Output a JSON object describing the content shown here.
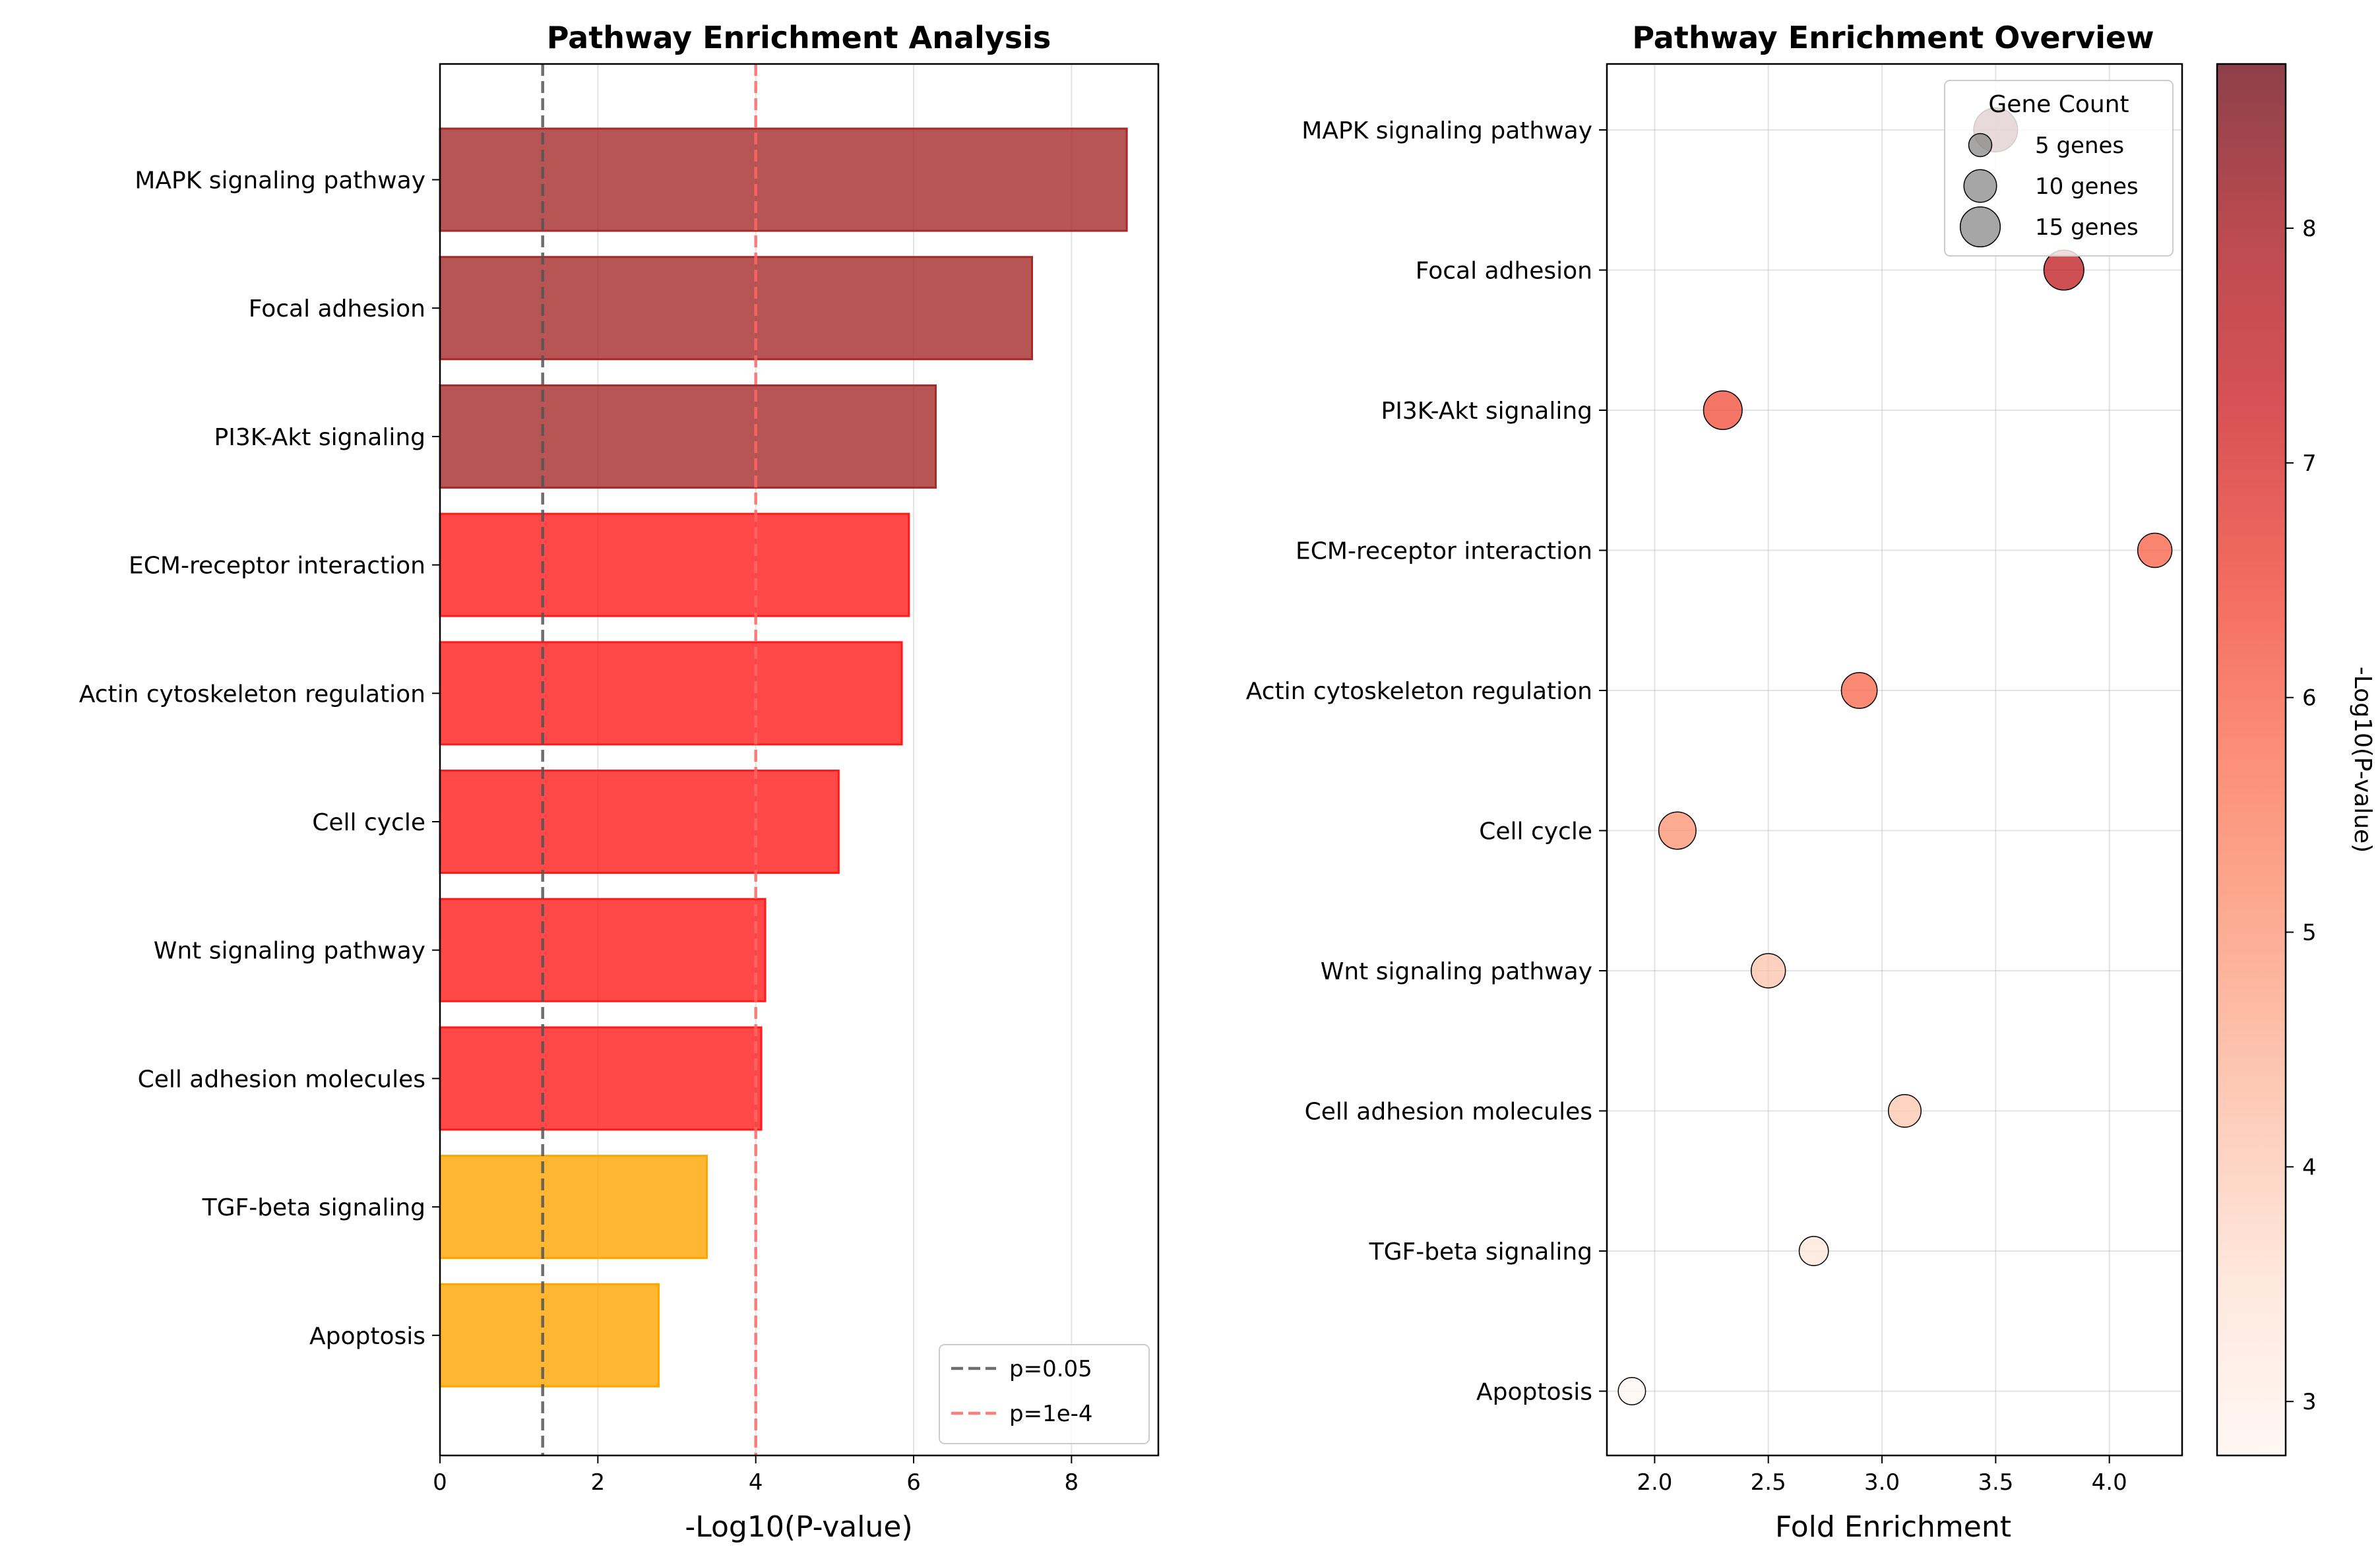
{
  "chart_data": [
    {
      "type": "bar",
      "orientation": "horizontal",
      "title": "Pathway Enrichment Analysis",
      "xlabel": "-Log10(P-value)",
      "ylabel": "",
      "xlim": [
        0,
        9.1
      ],
      "xticks": [
        "0",
        "2",
        "4",
        "6",
        "8"
      ],
      "grid": true,
      "categories": [
        "MAPK signaling pathway",
        "Focal adhesion",
        "PI3K-Akt signaling",
        "ECM-receptor interaction",
        "Actin cytoskeleton regulation",
        "Cell cycle",
        "Wnt signaling pathway",
        "Cell adhesion molecules",
        "TGF-beta signaling",
        "Apoptosis"
      ],
      "values": [
        8.7,
        7.5,
        6.28,
        5.94,
        5.85,
        5.05,
        4.12,
        4.07,
        3.38,
        2.77
      ],
      "bar_colors": [
        "#a52a2a",
        "#a52a2a",
        "#a52a2a",
        "#ff1a1a",
        "#ff1a1a",
        "#ff1a1a",
        "#ff1a1a",
        "#ff1a1a",
        "#ffa500",
        "#ffa500"
      ],
      "reference_lines": [
        {
          "label": "p=0.05",
          "x": 1.301,
          "color": "#555555"
        },
        {
          "label": "p=1e-4",
          "x": 4.0,
          "color": "#ff6666"
        }
      ],
      "legend_position": "lower-right"
    },
    {
      "type": "scatter",
      "title": "Pathway Enrichment Overview",
      "xlabel": "Fold Enrichment",
      "ylabel": "",
      "xlim": [
        1.79,
        4.32
      ],
      "xticks": [
        "2.0",
        "2.5",
        "3.0",
        "3.5",
        "4.0"
      ],
      "grid": true,
      "categories": [
        "MAPK signaling pathway",
        "Focal adhesion",
        "PI3K-Akt signaling",
        "ECM-receptor interaction",
        "Actin cytoskeleton regulation",
        "Cell cycle",
        "Wnt signaling pathway",
        "Cell adhesion molecules",
        "TGF-beta signaling",
        "Apoptosis"
      ],
      "x": [
        3.5,
        3.8,
        2.3,
        4.2,
        2.9,
        2.1,
        2.5,
        3.1,
        2.7,
        1.9
      ],
      "gene_count": [
        18,
        15,
        14,
        11,
        12,
        13,
        11,
        10,
        8,
        7
      ],
      "color_value": [
        8.7,
        7.5,
        6.28,
        5.94,
        5.85,
        5.05,
        4.12,
        4.07,
        3.38,
        2.77
      ],
      "size_legend": {
        "title": "Gene Count",
        "entries": [
          {
            "label": "5 genes",
            "count": 5
          },
          {
            "label": "10 genes",
            "count": 10
          },
          {
            "label": "15 genes",
            "count": 15
          }
        ],
        "position": "top-right"
      },
      "colorbar": {
        "label": "-Log10(P-value)",
        "range": [
          2.77,
          8.7
        ],
        "ticks": [
          "3",
          "4",
          "5",
          "6",
          "7",
          "8"
        ],
        "colormap": "Reds"
      }
    }
  ]
}
